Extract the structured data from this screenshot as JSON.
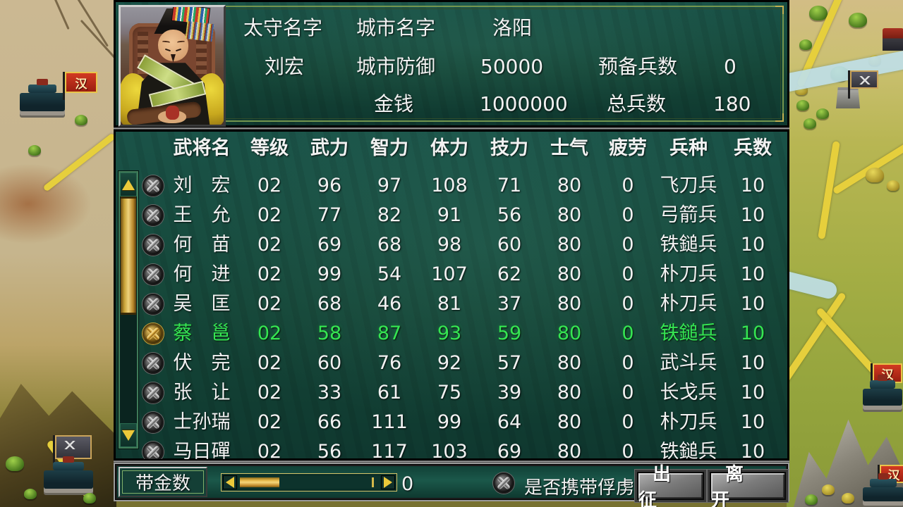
{
  "colors": {
    "selected_green": "#35e552",
    "panel_teal": "#1a5348",
    "gold": "#d8b84a"
  },
  "map": {
    "han_flag_label": "汉"
  },
  "info": {
    "governor_label": "太守名字",
    "governor_value": "刘宏",
    "city_name_label": "城市名字",
    "city_name_value": "洛阳",
    "city_defense_label": "城市防御",
    "city_defense_value": "50000",
    "money_label": "金钱",
    "money_value": "1000000",
    "reserve_label": "预备兵数",
    "reserve_value": "0",
    "total_label": "总兵数",
    "total_value": "180"
  },
  "roster": {
    "columns": [
      "武将名",
      "等级",
      "武力",
      "智力",
      "体力",
      "技力",
      "士气",
      "疲劳",
      "兵种",
      "兵数"
    ],
    "rows": [
      {
        "name": "刘宏",
        "level": "02",
        "war": "96",
        "intel": "97",
        "stamina": "108",
        "skill": "71",
        "morale": "80",
        "fatigue": "0",
        "troop": "飞刀兵",
        "count": "10",
        "selected": false
      },
      {
        "name": "王允",
        "level": "02",
        "war": "77",
        "intel": "82",
        "stamina": "91",
        "skill": "56",
        "morale": "80",
        "fatigue": "0",
        "troop": "弓箭兵",
        "count": "10",
        "selected": false
      },
      {
        "name": "何苗",
        "level": "02",
        "war": "69",
        "intel": "68",
        "stamina": "98",
        "skill": "60",
        "morale": "80",
        "fatigue": "0",
        "troop": "铁鎚兵",
        "count": "10",
        "selected": false
      },
      {
        "name": "何进",
        "level": "02",
        "war": "99",
        "intel": "54",
        "stamina": "107",
        "skill": "62",
        "morale": "80",
        "fatigue": "0",
        "troop": "朴刀兵",
        "count": "10",
        "selected": false
      },
      {
        "name": "吴匡",
        "level": "02",
        "war": "68",
        "intel": "46",
        "stamina": "81",
        "skill": "37",
        "morale": "80",
        "fatigue": "0",
        "troop": "朴刀兵",
        "count": "10",
        "selected": false
      },
      {
        "name": "蔡邕",
        "level": "02",
        "war": "58",
        "intel": "87",
        "stamina": "93",
        "skill": "59",
        "morale": "80",
        "fatigue": "0",
        "troop": "铁鎚兵",
        "count": "10",
        "selected": true
      },
      {
        "name": "伏完",
        "level": "02",
        "war": "60",
        "intel": "76",
        "stamina": "92",
        "skill": "57",
        "morale": "80",
        "fatigue": "0",
        "troop": "武斗兵",
        "count": "10",
        "selected": false
      },
      {
        "name": "张让",
        "level": "02",
        "war": "33",
        "intel": "61",
        "stamina": "75",
        "skill": "39",
        "morale": "80",
        "fatigue": "0",
        "troop": "长戈兵",
        "count": "10",
        "selected": false
      },
      {
        "name": "士孙瑞",
        "level": "02",
        "war": "66",
        "intel": "111",
        "stamina": "99",
        "skill": "64",
        "morale": "80",
        "fatigue": "0",
        "troop": "朴刀兵",
        "count": "10",
        "selected": false
      },
      {
        "name": "马日磾",
        "level": "02",
        "war": "56",
        "intel": "117",
        "stamina": "103",
        "skill": "69",
        "morale": "80",
        "fatigue": "0",
        "troop": "铁鎚兵",
        "count": "10",
        "selected": false
      }
    ]
  },
  "footer": {
    "gold_label": "带金数",
    "slider_value": "0",
    "prisoner_label": "是否携带俘虏",
    "deploy_label": "出征",
    "leave_label": "离开"
  }
}
